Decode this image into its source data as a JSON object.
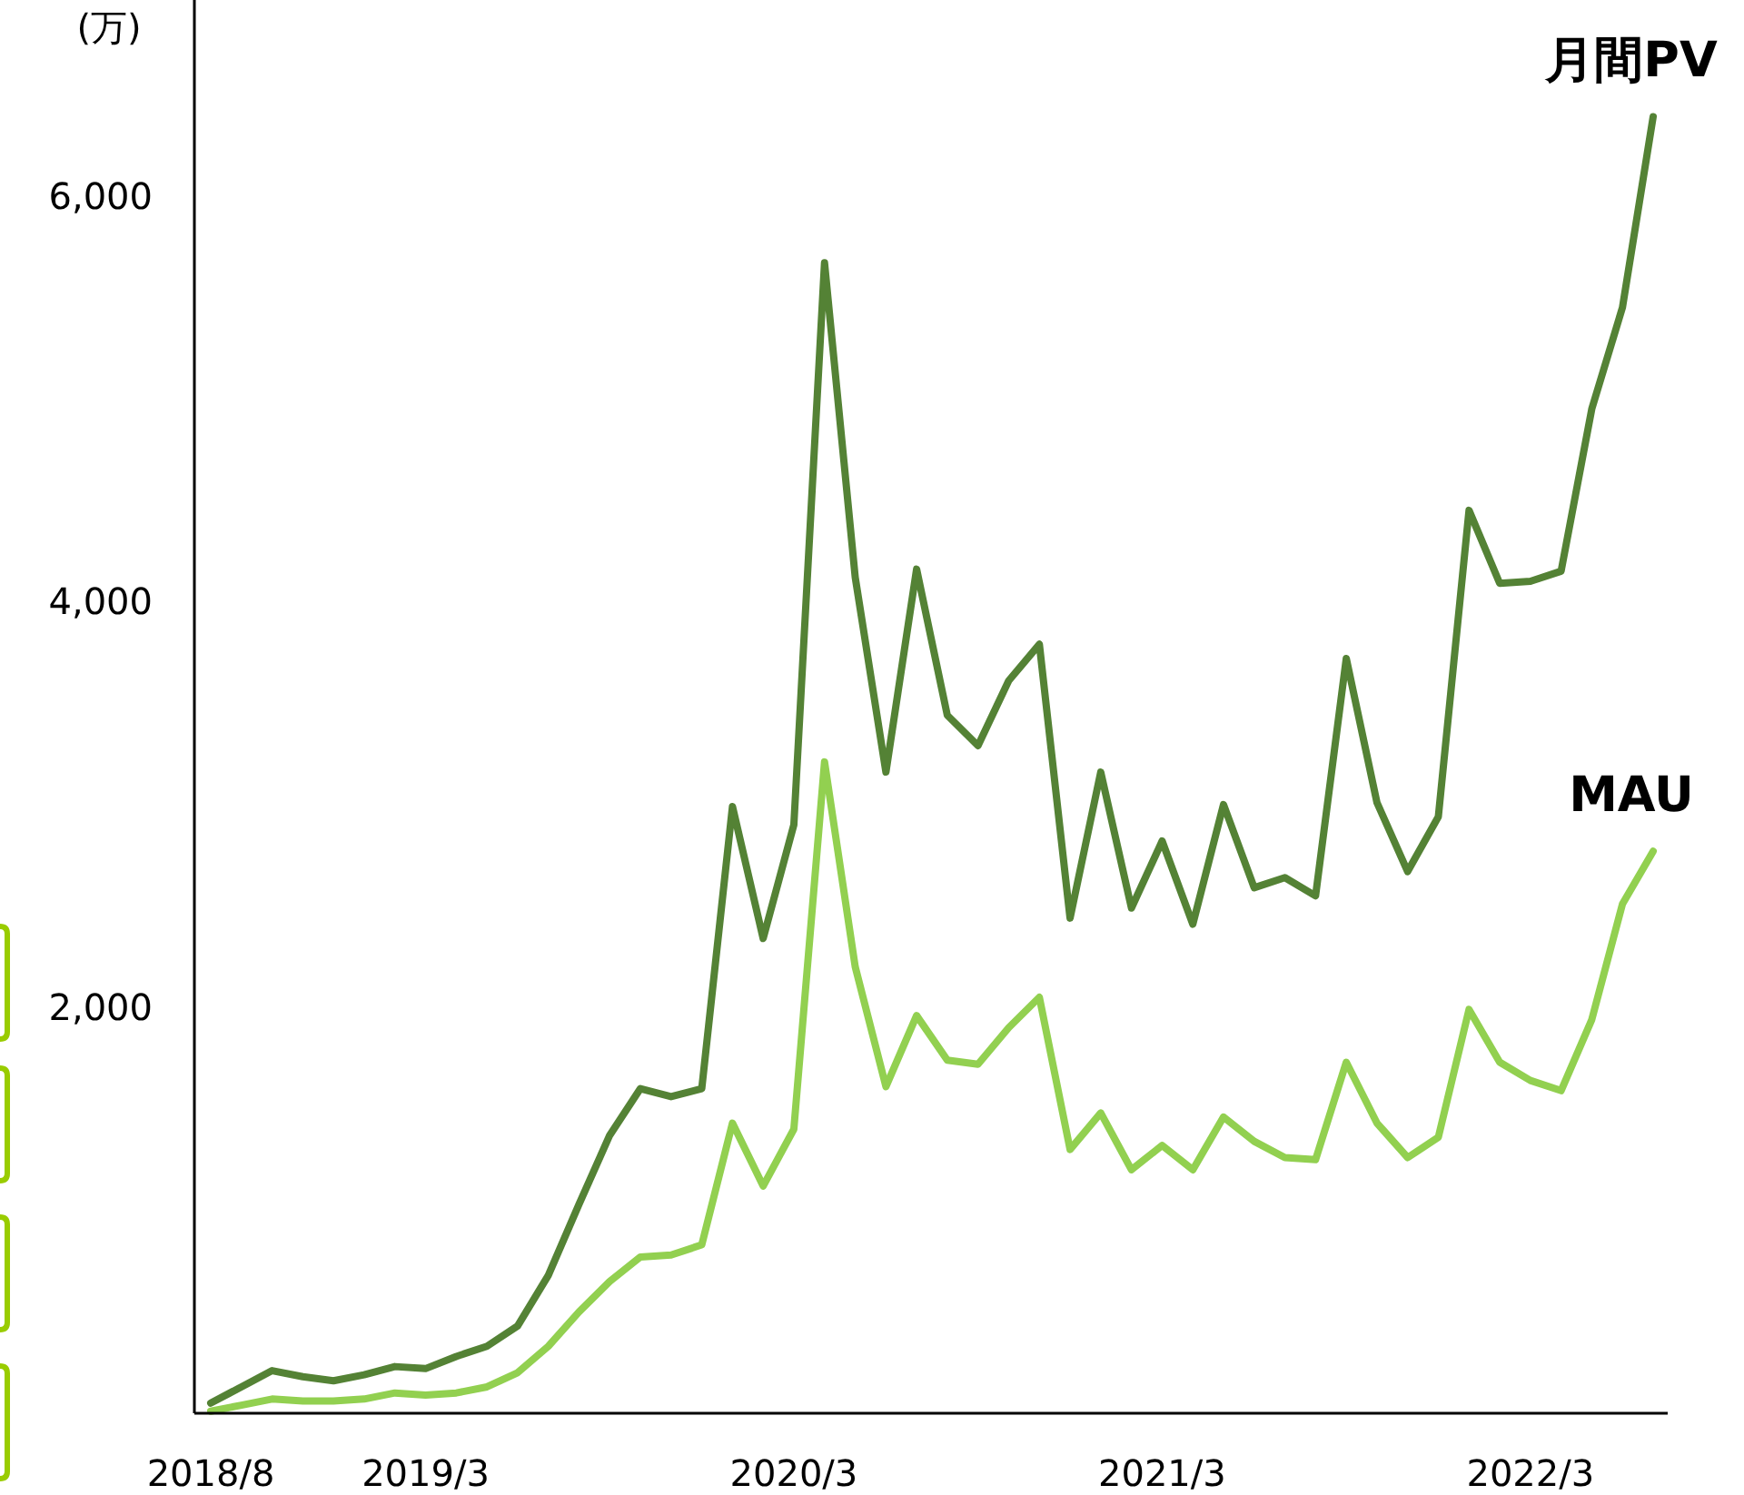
{
  "chart_data": {
    "type": "line",
    "ylabel": "(万)",
    "categories": [
      "2018/8",
      null,
      null,
      null,
      null,
      null,
      null,
      "2019/3",
      null,
      null,
      null,
      null,
      null,
      null,
      null,
      null,
      null,
      null,
      null,
      "2020/3",
      null,
      null,
      null,
      null,
      null,
      null,
      null,
      null,
      null,
      null,
      null,
      "2021/3",
      null,
      null,
      null,
      null,
      null,
      null,
      null,
      null,
      null,
      null,
      null,
      "2022/3",
      null,
      null,
      null,
      null
    ],
    "series": [
      {
        "name": "月間PV",
        "color": "#548235",
        "values": [
          50,
          130,
          210,
          180,
          160,
          190,
          230,
          220,
          280,
          330,
          430,
          680,
          1030,
          1370,
          1600,
          1560,
          1600,
          2990,
          2340,
          2900,
          5670,
          4120,
          3160,
          4160,
          3440,
          3290,
          3610,
          3790,
          2440,
          3160,
          2490,
          2820,
          2410,
          3000,
          2590,
          2640,
          2550,
          3720,
          3010,
          2670,
          2940,
          4450,
          4090,
          4100,
          4150,
          4950,
          5450,
          6390
        ]
      },
      {
        "name": "MAU",
        "color": "#92d050",
        "values": [
          10,
          40,
          70,
          60,
          60,
          70,
          100,
          90,
          100,
          130,
          200,
          330,
          500,
          650,
          770,
          780,
          830,
          1430,
          1120,
          1400,
          3210,
          2200,
          1610,
          1960,
          1740,
          1720,
          1900,
          2050,
          1300,
          1480,
          1200,
          1320,
          1200,
          1460,
          1340,
          1260,
          1250,
          1730,
          1430,
          1260,
          1360,
          1990,
          1730,
          1640,
          1590,
          1940,
          2510,
          2770
        ]
      }
    ],
    "ylim": [
      0,
      6965
    ],
    "yticks": [
      {
        "value": 2000,
        "label": "2,000"
      },
      {
        "value": 4000,
        "label": "4,000"
      },
      {
        "value": 6000,
        "label": "6,000"
      }
    ],
    "grid": false,
    "marker": "none",
    "line_style": "solid"
  }
}
